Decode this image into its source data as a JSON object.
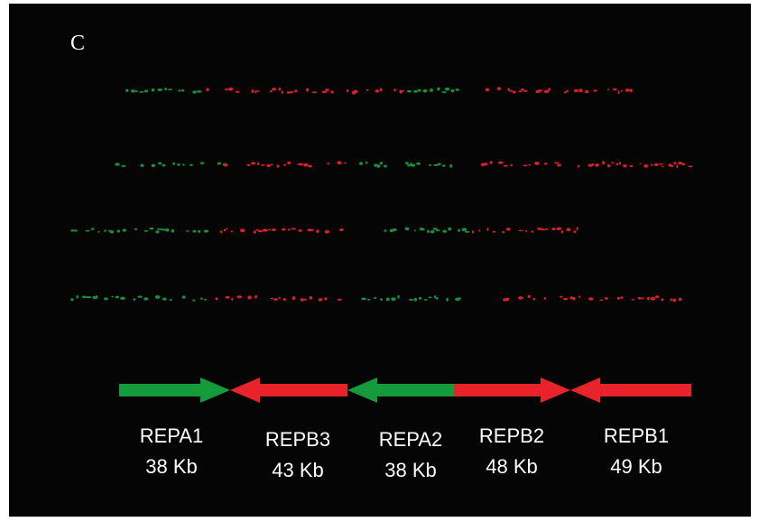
{
  "panel_label": "C",
  "segments": [
    {
      "name": "REPA1",
      "size": "38 Kb"
    },
    {
      "name": "REPB3",
      "size": "43 Kb"
    },
    {
      "name": "REPA2",
      "size": "38 Kb"
    },
    {
      "name": "REPB2",
      "size": "48 Kb"
    },
    {
      "name": "REPB1",
      "size": "49 Kb"
    }
  ]
}
